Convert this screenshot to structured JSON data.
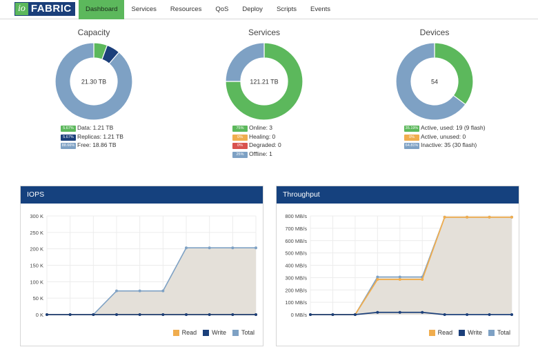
{
  "logo": {
    "io": "io",
    "fabric": "FABRIC"
  },
  "nav": {
    "items": [
      {
        "label": "Dashboard",
        "active": true
      },
      {
        "label": "Services",
        "active": false
      },
      {
        "label": "Resources",
        "active": false
      },
      {
        "label": "QoS",
        "active": false
      },
      {
        "label": "Deploy",
        "active": false
      },
      {
        "label": "Scripts",
        "active": false
      },
      {
        "label": "Events",
        "active": false
      }
    ]
  },
  "capacity": {
    "title": "Capacity",
    "center": "21.30 TB",
    "segments": [
      {
        "value": 5.67,
        "color": "#5cb85c"
      },
      {
        "value": 5.67,
        "color": "#1b3f7a"
      },
      {
        "value": 88.66,
        "color": "#7ea1c4"
      }
    ],
    "legend": [
      {
        "badge": "5.67%",
        "color": "#5cb85c",
        "text": "Data: 1.21 TB"
      },
      {
        "badge": "5.67%",
        "color": "#1b3f7a",
        "text": "Replicas: 1.21 TB"
      },
      {
        "badge": "88.66%",
        "color": "#7ea1c4",
        "text": "Free: 18.86 TB"
      }
    ]
  },
  "services": {
    "title": "Services",
    "center": "121.21 TB",
    "segments": [
      {
        "value": 75,
        "color": "#5cb85c"
      },
      {
        "value": 0,
        "color": "#f0ad4e"
      },
      {
        "value": 0,
        "color": "#d9534f"
      },
      {
        "value": 25,
        "color": "#7ea1c4"
      }
    ],
    "legend": [
      {
        "badge": "75%",
        "color": "#5cb85c",
        "text": "Online: 3"
      },
      {
        "badge": "0%",
        "color": "#f0ad4e",
        "text": "Healing: 0"
      },
      {
        "badge": "0%",
        "color": "#d9534f",
        "text": "Degraded: 0"
      },
      {
        "badge": "25%",
        "color": "#7ea1c4",
        "text": "Offline: 1"
      }
    ]
  },
  "devices": {
    "title": "Devices",
    "center": "54",
    "segments": [
      {
        "value": 35.19,
        "color": "#5cb85c"
      },
      {
        "value": 0,
        "color": "#f0ad4e"
      },
      {
        "value": 64.81,
        "color": "#7ea1c4"
      }
    ],
    "legend": [
      {
        "badge": "35.19%",
        "color": "#5cb85c",
        "text": "Active, used: 19 (9 flash)"
      },
      {
        "badge": "0%",
        "color": "#f0ad4e",
        "text": "Active, unused: 0"
      },
      {
        "badge": "64.81%",
        "color": "#7ea1c4",
        "text": "Inactive: 35 (30 flash)"
      }
    ]
  },
  "chart_data": [
    {
      "type": "area",
      "title": "IOPS",
      "x": [
        0,
        1,
        2,
        3,
        4,
        5,
        6,
        7,
        8,
        9
      ],
      "ylim": [
        0,
        300000
      ],
      "yticks": [
        "0 K",
        "50 K",
        "100 K",
        "150 K",
        "200 K",
        "250 K",
        "300 K"
      ],
      "series": [
        {
          "name": "Read",
          "color": "#f0ad4e",
          "values": [
            0,
            0,
            0,
            0,
            0,
            0,
            0,
            0,
            0,
            0
          ]
        },
        {
          "name": "Write",
          "color": "#1b3f7a",
          "values": [
            0,
            0,
            0,
            0,
            0,
            0,
            0,
            0,
            0,
            0
          ]
        },
        {
          "name": "Total",
          "color": "#7ea1c4",
          "values": [
            0,
            0,
            0,
            72000,
            72000,
            72000,
            203000,
            203000,
            203000,
            203000
          ]
        }
      ]
    },
    {
      "type": "area",
      "title": "Throughput",
      "x": [
        0,
        1,
        2,
        3,
        4,
        5,
        6,
        7,
        8,
        9
      ],
      "ylim": [
        0,
        800
      ],
      "yticks": [
        "0 MB/s",
        "100 MB/s",
        "200 MB/s",
        "300 MB/s",
        "400 MB/s",
        "500 MB/s",
        "600 MB/s",
        "700 MB/s",
        "800 MB/s"
      ],
      "series": [
        {
          "name": "Read",
          "color": "#f0ad4e",
          "values": [
            0,
            0,
            0,
            285,
            285,
            285,
            790,
            790,
            790,
            790
          ]
        },
        {
          "name": "Write",
          "color": "#1b3f7a",
          "values": [
            0,
            0,
            0,
            18,
            18,
            18,
            0,
            0,
            0,
            0
          ]
        },
        {
          "name": "Total",
          "color": "#7ea1c4",
          "values": [
            0,
            0,
            0,
            305,
            305,
            305,
            790,
            790,
            790,
            790
          ]
        }
      ]
    }
  ]
}
